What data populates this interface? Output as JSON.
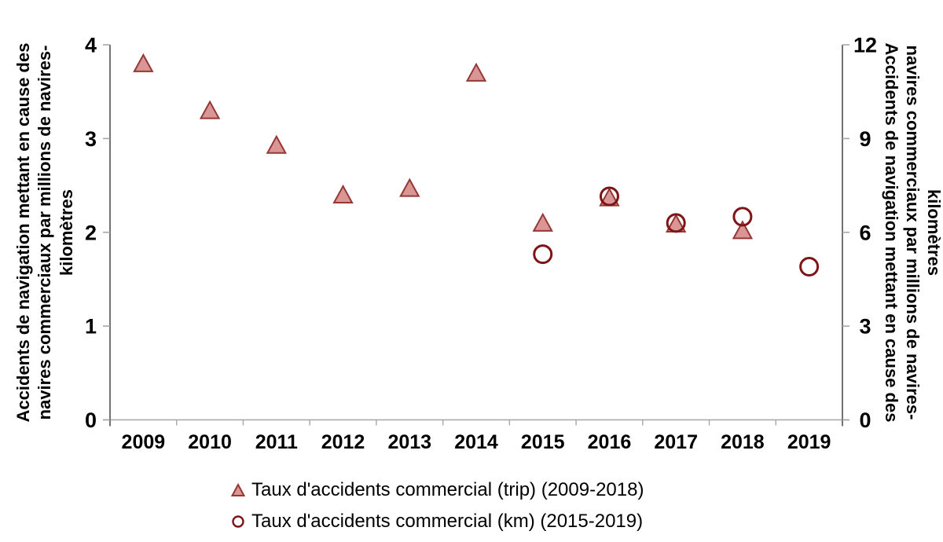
{
  "chart_data": {
    "type": "scatter",
    "categories": [
      "2009",
      "2010",
      "2011",
      "2012",
      "2013",
      "2014",
      "2015",
      "2016",
      "2017",
      "2018",
      "2019"
    ],
    "series": [
      {
        "name": "Taux d'accidents commercial (trip) (2009-2018)",
        "marker": "triangle",
        "axis": "left",
        "values": [
          3.8,
          3.3,
          2.93,
          2.4,
          2.47,
          3.7,
          2.1,
          2.37,
          2.09,
          2.02,
          null
        ]
      },
      {
        "name": "Taux d'accidents commercial (km) (2015-2019)",
        "marker": "circle",
        "axis": "right",
        "values": [
          null,
          null,
          null,
          null,
          null,
          null,
          5.3,
          7.15,
          6.3,
          6.5,
          4.9
        ]
      }
    ],
    "y_left": {
      "title_lines": [
        "Accidents de navigation mettant en cause des",
        "navires commerciaux par millions de navires-",
        "kilomètres"
      ],
      "range": [
        0,
        4
      ],
      "ticks": [
        0,
        1,
        2,
        3,
        4
      ]
    },
    "y_right": {
      "title_lines": [
        "Accidents de navigation mettant en cause des",
        "navires commerciaux par millions de navires-",
        "kilomètres"
      ],
      "range": [
        0,
        12
      ],
      "ticks": [
        0,
        3,
        6,
        9,
        12
      ]
    },
    "x_axis": {
      "tick_labels": [
        "2009",
        "2010",
        "2011",
        "2012",
        "2013",
        "2014",
        "2015",
        "2016",
        "2017",
        "2018",
        "2019"
      ]
    },
    "legend": {
      "position": "bottom",
      "items": [
        {
          "label": "Taux d'accidents commercial (trip) (2009-2018)",
          "marker": "triangle"
        },
        {
          "label": "Taux d'accidents commercial (km) (2015-2019)",
          "marker": "circle"
        }
      ]
    },
    "grid": "off",
    "colors": {
      "triangle_fill": "#D99694",
      "triangle_stroke": "#953735",
      "circle_stroke": "#7F1416",
      "circle_fill": "none",
      "axis_line": "#595959",
      "tick_line": "#A6A6A6",
      "text": "#000000"
    }
  }
}
